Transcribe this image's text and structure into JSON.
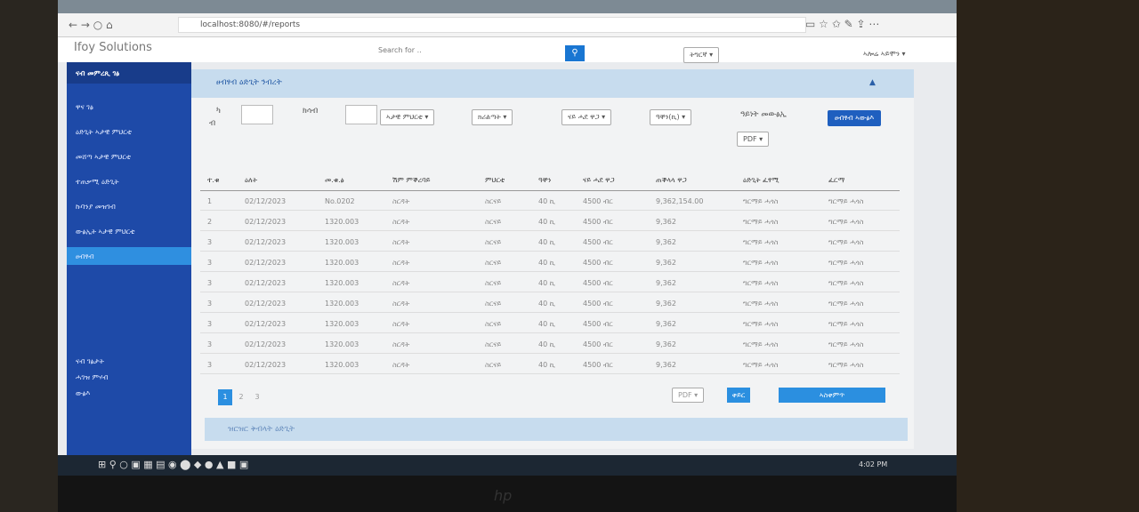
{
  "browser": {
    "url": "localhost:8080/#/reports"
  },
  "header": {
    "brand": "Ifoy Solutions",
    "search_placeholder": "Search for ..",
    "language": "ትግርኛ",
    "user": "ኣሎሬ ኣይሞን"
  },
  "sidebar": {
    "title": "ናብ መምረጺ ገፅ",
    "items": [
      "ዋና ገፅ",
      "ዕድጊት ኣታዊ ምህርቲ",
      "መሸጣ ኣታዊ ምህርቲ",
      "ተጠቃሚ ዕድጊት",
      "ኩባንያ መዝገብ",
      "ውፅኢት ኣታዊ ምህርቲ",
      "ፀብፃብ"
    ],
    "bottom_items": [
      "ናብ ገፅታት",
      "ሓገዝ ምሃብ",
      "ውፅእ"
    ]
  },
  "panel": {
    "title": "ፀብፃብ ዕድጊት ንብረት",
    "from_label": "ካ",
    "from_sub": "ብ",
    "to_label": "ክሳብ",
    "product": "ኣታዊ ምህርቲ",
    "type": "ክሪልጣት",
    "unit_price": "ናይ ሓደ ዋጋ",
    "quantity": "ዓቐን(ኪ)",
    "output_type_label": "ዓይነት መውፅኢ",
    "output_format": "PDF",
    "generate": "ፀብፃብ ኣውፅእ"
  },
  "table": {
    "headers": [
      "ተ.ቁ",
      "ዕለት",
      "መ.ቁ.ፅ",
      "ሽም ምቕረባይ",
      "ምህርቲ",
      "ዓቐን",
      "ናይ ሓደ ዋጋ",
      "ጠቕላላ ዋጋ",
      "ዕድጊት ፈፃሚ",
      "ፈርማ"
    ],
    "rows": [
      [
        "1",
        "02/12/2023",
        "No.0202",
        "ስርዳት",
        "ስርናይ",
        "40 ኪ",
        "4500 ብር",
        "9,362,154.00",
        "ግርማይ ሓጎስ",
        "ግርማይ ሓጎስ"
      ],
      [
        "2",
        "02/12/2023",
        "1320.003",
        "ስርዳት",
        "ስርናይ",
        "40 ኪ",
        "4500 ብር",
        "9,362",
        "ግርማይ ሓጎስ",
        "ግርማይ ሓጎስ"
      ],
      [
        "3",
        "02/12/2023",
        "1320.003",
        "ስርዳት",
        "ስርናይ",
        "40 ኪ",
        "4500 ብር",
        "9,362",
        "ግርማይ ሓጎስ",
        "ግርማይ ሓጎስ"
      ],
      [
        "3",
        "02/12/2023",
        "1320.003",
        "ስርዳት",
        "ስርናይ",
        "40 ኪ",
        "4500 ብር",
        "9,362",
        "ግርማይ ሓጎስ",
        "ግርማይ ሓጎስ"
      ],
      [
        "3",
        "02/12/2023",
        "1320.003",
        "ስርዳት",
        "ስርናይ",
        "40 ኪ",
        "4500 ብር",
        "9,362",
        "ግርማይ ሓጎስ",
        "ግርማይ ሓጎስ"
      ],
      [
        "3",
        "02/12/2023",
        "1320.003",
        "ስርዳት",
        "ስርናይ",
        "40 ኪ",
        "4500 ብር",
        "9,362",
        "ግርማይ ሓጎስ",
        "ግርማይ ሓጎስ"
      ],
      [
        "3",
        "02/12/2023",
        "1320.003",
        "ስርዳት",
        "ስርናይ",
        "40 ኪ",
        "4500 ብር",
        "9,362",
        "ግርማይ ሓጎስ",
        "ግርማይ ሓጎስ"
      ],
      [
        "3",
        "02/12/2023",
        "1320.003",
        "ስርዳት",
        "ስርናይ",
        "40 ኪ",
        "4500 ብር",
        "9,362",
        "ግርማይ ሓጎስ",
        "ግርማይ ሓጎስ"
      ],
      [
        "3",
        "02/12/2023",
        "1320.003",
        "ስርዳት",
        "ስርናይ",
        "40 ኪ",
        "4500 ብር",
        "9,362",
        "ግርማይ ሓጎስ",
        "ግርማይ ሓጎስ"
      ]
    ]
  },
  "pagination": [
    "1",
    "2",
    "3"
  ],
  "actions": {
    "pdf": "PDF",
    "edit": "ቀይር",
    "save": "ኣስቀምጥ"
  },
  "footer_panel": {
    "title": "ዝርዝር ቅብላት ዕድጊት"
  },
  "taskbar": {
    "time": "4:02 PM"
  }
}
